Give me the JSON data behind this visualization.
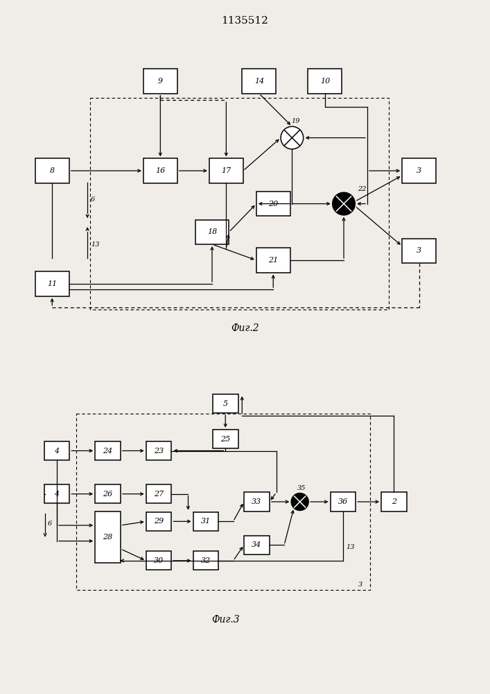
{
  "title": "1135512",
  "fig1_label": "Фиг.2",
  "fig2_label": "Фиг.3",
  "bg_color": "#f0ede8",
  "box_color": "white",
  "line_color": "black"
}
